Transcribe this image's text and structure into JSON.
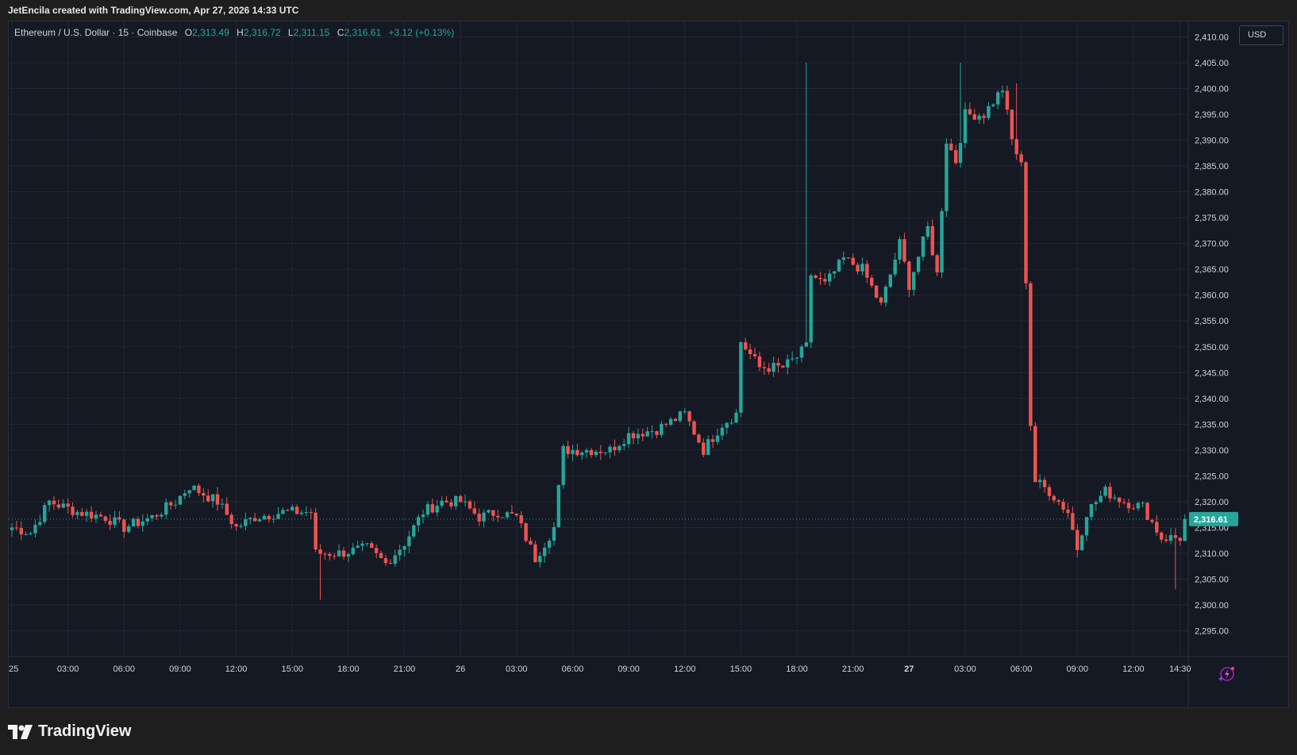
{
  "caption": "JetEncila created with TradingView.com, Apr 27, 2026 14:33 UTC",
  "legend": {
    "symbol": "Ethereum / U.S. Dollar · 15 · Coinbase",
    "open_label": "O",
    "open": "2,313.49",
    "high_label": "H",
    "high": "2,316.72",
    "low_label": "L",
    "low": "2,311.15",
    "close_label": "C",
    "close": "2,316.61",
    "change": "+3.12 (+0.13%)"
  },
  "currency": "USD",
  "brand": "TradingView",
  "colors": {
    "up": "#26a69a",
    "down": "#ef5350",
    "background": "#151924",
    "grid": "#232734",
    "axis_text": "#d1d4dc",
    "price_tag": "#26a69a"
  },
  "chart_data": {
    "type": "candlestick",
    "interval": "15",
    "y_range": [
      2290,
      2413
    ],
    "y_ticks": [
      "2,295.00",
      "2,300.00",
      "2,305.00",
      "2,310.00",
      "2,315.00",
      "2,320.00",
      "2,325.00",
      "2,330.00",
      "2,335.00",
      "2,340.00",
      "2,345.00",
      "2,350.00",
      "2,355.00",
      "2,360.00",
      "2,365.00",
      "2,370.00",
      "2,375.00",
      "2,380.00",
      "2,385.00",
      "2,390.00",
      "2,395.00",
      "2,400.00",
      "2,405.00",
      "2,410.00"
    ],
    "y_tick_values": [
      2295,
      2300,
      2305,
      2310,
      2315,
      2320,
      2325,
      2330,
      2335,
      2340,
      2345,
      2350,
      2355,
      2360,
      2365,
      2370,
      2375,
      2380,
      2385,
      2390,
      2395,
      2400,
      2405,
      2410
    ],
    "x_ticks": [
      "25",
      "03:00",
      "06:00",
      "09:00",
      "12:00",
      "15:00",
      "18:00",
      "21:00",
      "26",
      "03:00",
      "06:00",
      "09:00",
      "12:00",
      "15:00",
      "18:00",
      "21:00",
      "27",
      "03:00",
      "06:00",
      "09:00",
      "12:00",
      "14:30"
    ],
    "x_tick_bars": [
      0,
      12,
      24,
      36,
      48,
      60,
      72,
      84,
      96,
      108,
      120,
      132,
      144,
      156,
      168,
      180,
      192,
      204,
      216,
      228,
      240,
      250
    ],
    "last_price": 2316.61,
    "last_price_label": "2,316.61",
    "anchors": [
      {
        "bar": 0,
        "price": 2315
      },
      {
        "bar": 4,
        "price": 2314
      },
      {
        "bar": 8,
        "price": 2320
      },
      {
        "bar": 14,
        "price": 2318
      },
      {
        "bar": 20,
        "price": 2317
      },
      {
        "bar": 24,
        "price": 2315
      },
      {
        "bar": 30,
        "price": 2317
      },
      {
        "bar": 35,
        "price": 2320
      },
      {
        "bar": 38,
        "price": 2323
      },
      {
        "bar": 44,
        "price": 2320
      },
      {
        "bar": 48,
        "price": 2315
      },
      {
        "bar": 52,
        "price": 2317
      },
      {
        "bar": 58,
        "price": 2318
      },
      {
        "bar": 64,
        "price": 2318
      },
      {
        "bar": 65,
        "price": 2310
      },
      {
        "bar": 70,
        "price": 2310
      },
      {
        "bar": 76,
        "price": 2311
      },
      {
        "bar": 80,
        "price": 2308
      },
      {
        "bar": 84,
        "price": 2312
      },
      {
        "bar": 88,
        "price": 2318
      },
      {
        "bar": 92,
        "price": 2320
      },
      {
        "bar": 96,
        "price": 2320
      },
      {
        "bar": 100,
        "price": 2317
      },
      {
        "bar": 104,
        "price": 2318
      },
      {
        "bar": 108,
        "price": 2317
      },
      {
        "bar": 112,
        "price": 2309
      },
      {
        "bar": 116,
        "price": 2315
      },
      {
        "bar": 118,
        "price": 2330
      },
      {
        "bar": 122,
        "price": 2330
      },
      {
        "bar": 128,
        "price": 2330
      },
      {
        "bar": 132,
        "price": 2333
      },
      {
        "bar": 138,
        "price": 2334
      },
      {
        "bar": 144,
        "price": 2337
      },
      {
        "bar": 148,
        "price": 2330
      },
      {
        "bar": 152,
        "price": 2335
      },
      {
        "bar": 155,
        "price": 2337
      },
      {
        "bar": 156,
        "price": 2351
      },
      {
        "bar": 160,
        "price": 2346
      },
      {
        "bar": 165,
        "price": 2346
      },
      {
        "bar": 168,
        "price": 2348
      },
      {
        "bar": 170,
        "price": 2350
      },
      {
        "bar": 171,
        "price": 2364
      },
      {
        "bar": 174,
        "price": 2362
      },
      {
        "bar": 178,
        "price": 2367
      },
      {
        "bar": 182,
        "price": 2365
      },
      {
        "bar": 186,
        "price": 2358
      },
      {
        "bar": 190,
        "price": 2370
      },
      {
        "bar": 192,
        "price": 2362
      },
      {
        "bar": 196,
        "price": 2373
      },
      {
        "bar": 198,
        "price": 2364
      },
      {
        "bar": 200,
        "price": 2390
      },
      {
        "bar": 202,
        "price": 2386
      },
      {
        "bar": 204,
        "price": 2395
      },
      {
        "bar": 208,
        "price": 2395
      },
      {
        "bar": 212,
        "price": 2400
      },
      {
        "bar": 214,
        "price": 2390
      },
      {
        "bar": 216,
        "price": 2385
      },
      {
        "bar": 217,
        "price": 2363
      },
      {
        "bar": 218,
        "price": 2335
      },
      {
        "bar": 219,
        "price": 2324
      },
      {
        "bar": 222,
        "price": 2322
      },
      {
        "bar": 226,
        "price": 2318
      },
      {
        "bar": 228,
        "price": 2311
      },
      {
        "bar": 230,
        "price": 2318
      },
      {
        "bar": 234,
        "price": 2322
      },
      {
        "bar": 238,
        "price": 2320
      },
      {
        "bar": 242,
        "price": 2319
      },
      {
        "bar": 246,
        "price": 2313
      },
      {
        "bar": 250,
        "price": 2313
      },
      {
        "bar": 251,
        "price": 2316.6
      }
    ],
    "spikes": [
      {
        "bar": 170,
        "high": 2405
      },
      {
        "bar": 203,
        "high": 2405
      },
      {
        "bar": 215,
        "high": 2401
      },
      {
        "bar": 249,
        "low": 2303
      },
      {
        "bar": 66,
        "low": 2301
      }
    ]
  }
}
